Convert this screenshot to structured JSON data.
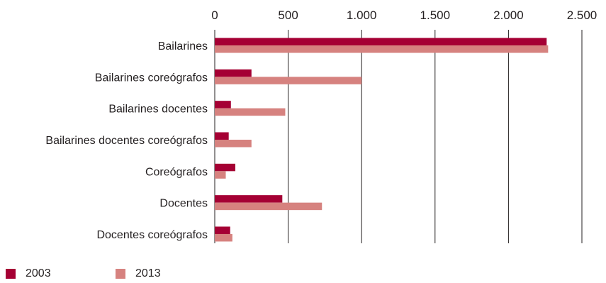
{
  "colors": {
    "s2003": "#a50034",
    "s2013": "#d6827f",
    "grid": "#231f20",
    "text": "#231f20"
  },
  "chart_data": {
    "type": "bar",
    "orientation": "horizontal",
    "categories": [
      "Bailarines",
      "Bailarines coreógrafos",
      "Bailarines docentes",
      "Bailarines docentes coreógrafos",
      "Coreógrafos",
      "Docentes",
      "Docentes coreógrafos"
    ],
    "series": [
      {
        "name": "2003",
        "values": [
          2260,
          250,
          110,
          95,
          140,
          460,
          105
        ]
      },
      {
        "name": "2013",
        "values": [
          2270,
          1000,
          480,
          250,
          75,
          730,
          120
        ]
      }
    ],
    "xlim": [
      0,
      2500
    ],
    "xticks": [
      0,
      500,
      1000,
      1500,
      2000,
      2500
    ],
    "xtick_labels": [
      "0",
      "500",
      "1.000",
      "1.500",
      "2.000",
      "2.500"
    ],
    "axis_position": "top",
    "grid": "vertical",
    "legend_position": "bottom-left"
  }
}
